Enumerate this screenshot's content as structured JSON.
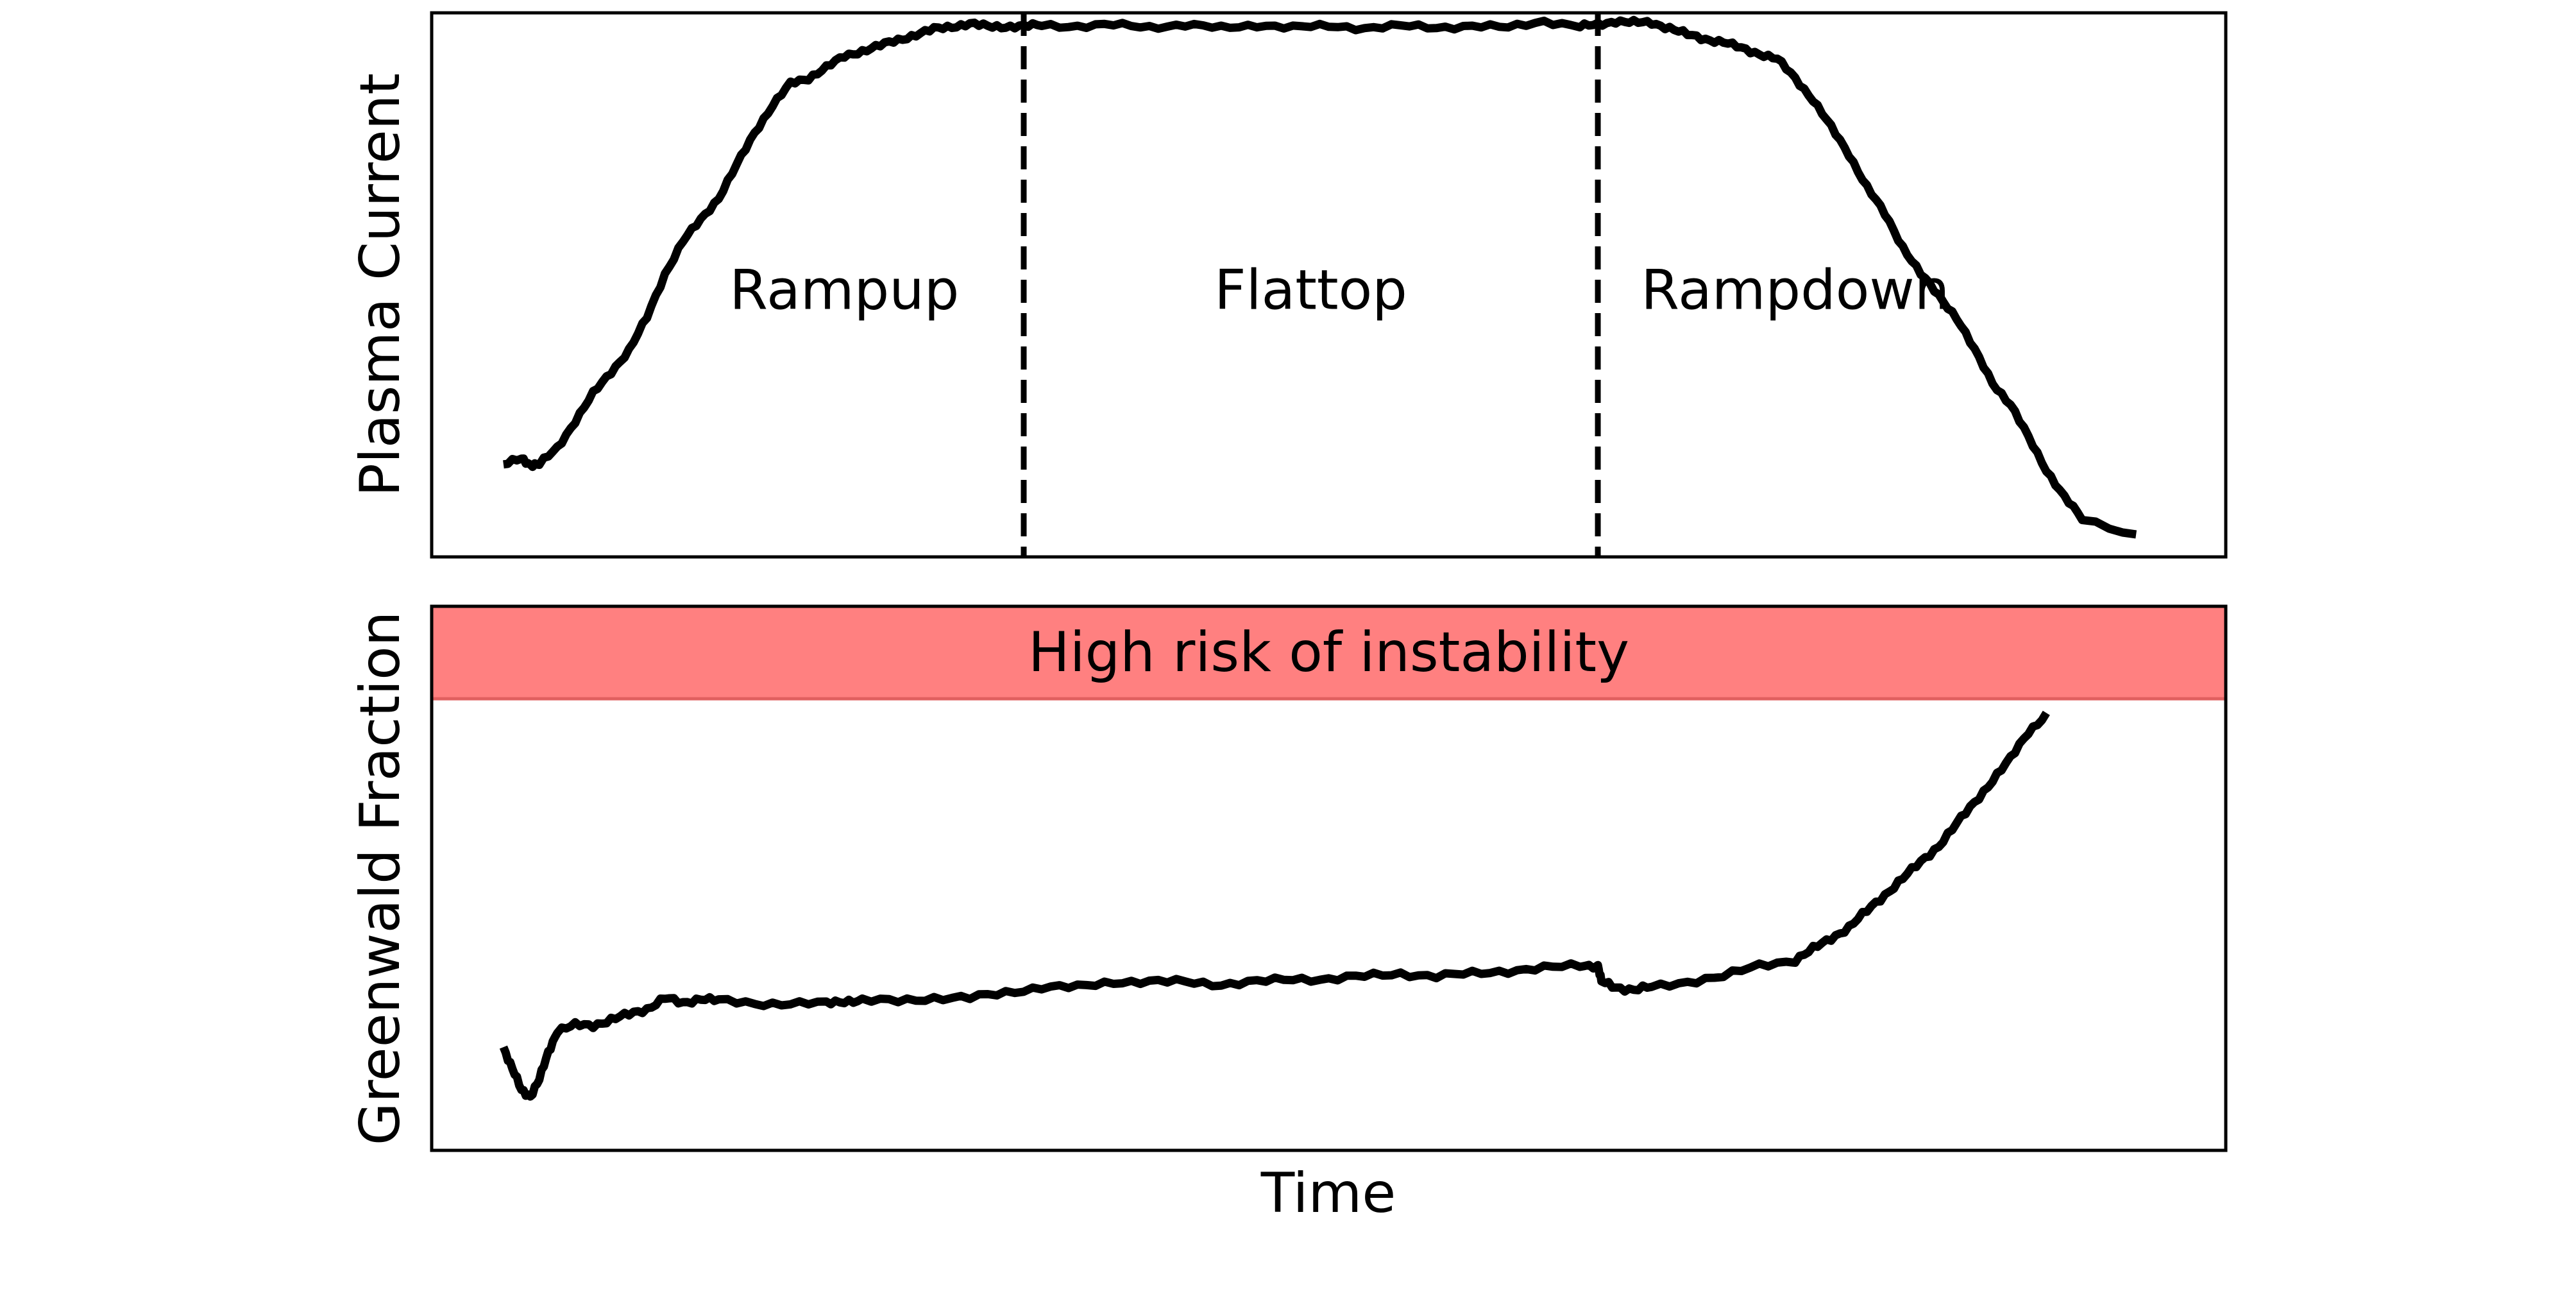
{
  "chart_data": [
    {
      "type": "line",
      "panel": "top",
      "ylabel": "Plasma Current",
      "xlabel": "",
      "xlim": [
        0,
        100
      ],
      "ylim": [
        0,
        100
      ],
      "ticks_visible": false,
      "grid": false,
      "phase_boundaries": [
        33,
        65
      ],
      "boundary_style": "dashed",
      "phase_labels": [
        {
          "text": "Rampup",
          "x": 23
        },
        {
          "text": "Flattop",
          "x": 49
        },
        {
          "text": "Rampdown",
          "x": 76
        }
      ],
      "phase_label_y": 49,
      "series": [
        {
          "color": "#000000",
          "x": [
            4,
            5,
            5.5,
            6,
            7,
            8,
            9,
            10,
            11,
            12,
            13,
            14,
            15,
            16,
            17,
            18,
            19,
            20,
            21,
            22,
            23,
            24,
            25,
            26,
            27,
            28,
            29,
            30,
            31,
            32,
            33,
            34,
            36,
            38,
            40,
            42,
            44,
            46,
            48,
            50,
            52,
            54,
            56,
            58,
            60,
            62,
            64,
            65,
            66,
            67,
            68,
            69,
            70,
            71,
            72,
            73,
            74,
            75,
            76,
            77,
            78,
            79,
            80,
            81,
            82,
            83,
            84,
            85,
            86,
            87,
            88,
            89,
            90,
            91,
            92,
            95
          ],
          "values": [
            17,
            18,
            17,
            17,
            20,
            25,
            30,
            34,
            38,
            44,
            52,
            58,
            62,
            66,
            72,
            78,
            83,
            87,
            88,
            90,
            92,
            93,
            94,
            95,
            96,
            97,
            97.5,
            98,
            97.5,
            97.5,
            97.5,
            97.8,
            97.5,
            97.8,
            97.4,
            97.8,
            97.2,
            97.8,
            97.3,
            97.6,
            97.2,
            97.6,
            97.3,
            97.6,
            97.3,
            98.5,
            97.5,
            97.8,
            98.5,
            98.2,
            98.2,
            97.2,
            96,
            95.2,
            94.6,
            93.5,
            92.5,
            91.5,
            88,
            84,
            79,
            74,
            68,
            63,
            57,
            52,
            48,
            44,
            38,
            32,
            28,
            22,
            16,
            11,
            7,
            4
          ]
        }
      ]
    },
    {
      "type": "line",
      "panel": "bottom",
      "ylabel": "Greenwald Fraction",
      "xlabel": "Time",
      "xlim": [
        0,
        100
      ],
      "ylim": [
        0,
        100
      ],
      "ticks_visible": false,
      "grid": false,
      "band": {
        "label": "High risk of instability",
        "y_from": 83,
        "y_to": 100,
        "color": "#ff8080",
        "edge_color": "#e06060"
      },
      "series": [
        {
          "color": "#000000",
          "x": [
            4,
            4.5,
            5,
            5.5,
            6,
            6.5,
            7,
            8,
            9,
            10,
            11,
            12,
            13,
            14,
            15,
            16,
            18,
            20,
            22,
            23,
            24,
            26,
            28,
            30,
            32,
            34,
            36,
            38,
            40,
            42,
            44,
            46,
            48,
            50,
            52,
            54,
            56,
            58,
            60,
            62,
            64,
            65,
            65.2,
            66,
            67,
            68,
            70,
            72,
            74,
            76,
            77,
            78,
            79,
            80,
            81,
            82,
            83,
            84,
            85,
            86,
            87,
            88,
            89,
            90
          ],
          "values": [
            19,
            15,
            11,
            10,
            13,
            18,
            22,
            23,
            23,
            24,
            25,
            26,
            28,
            27,
            28,
            27.5,
            27,
            27,
            27,
            27.5,
            27.5,
            27.5,
            28,
            28,
            29,
            30,
            30,
            31,
            31,
            31,
            30.5,
            31,
            31.5,
            31.5,
            32,
            32.5,
            32,
            32.5,
            33,
            33.5,
            34,
            34,
            31,
            30,
            29.5,
            30,
            31,
            32,
            34,
            35,
            37,
            39,
            41,
            44,
            47,
            50,
            53,
            56,
            60,
            64,
            68,
            72,
            77,
            80
          ]
        }
      ]
    }
  ]
}
